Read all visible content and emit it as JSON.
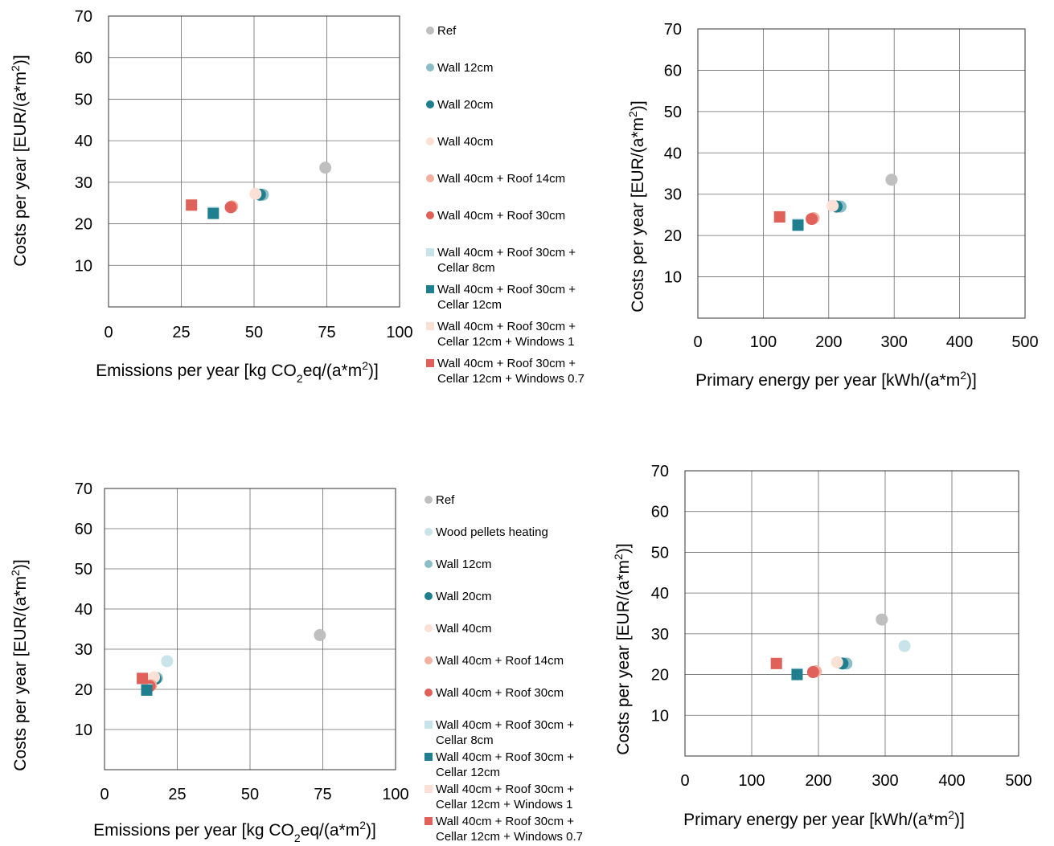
{
  "chart_data": [
    {
      "type": "scatter",
      "xlabel": "Emissions per year [kg CO2eq/(a*m2)]",
      "ylabel": "Costs per year [EUR/(a*m2)]",
      "xlim": [
        0,
        100
      ],
      "ylim": [
        0,
        70
      ],
      "xticks": [
        "0",
        "25",
        "50",
        "75",
        "100"
      ],
      "yticks": [
        "10",
        "20",
        "30",
        "40",
        "50",
        "60",
        "70"
      ],
      "grid": true,
      "legend": "right",
      "series": [
        {
          "name": "Ref",
          "marker": "circle",
          "color": "#bfbfbf",
          "x": [
            74.5
          ],
          "y": [
            33.5
          ]
        },
        {
          "name": "Wall 12cm",
          "marker": "circle",
          "color": "#8cbcc6",
          "x": [
            53
          ],
          "y": [
            27
          ]
        },
        {
          "name": "Wall 20cm",
          "marker": "circle",
          "color": "#1f7f8e",
          "x": [
            52
          ],
          "y": [
            27
          ]
        },
        {
          "name": "Wall 40cm",
          "marker": "circle",
          "color": "#fbe0d6",
          "x": [
            50.5
          ],
          "y": [
            27.2
          ]
        },
        {
          "name": "Wall 40cm + Roof 14cm",
          "marker": "circle",
          "color": "#f2b09e",
          "x": [
            42.5
          ],
          "y": [
            24.2
          ]
        },
        {
          "name": "Wall 40cm + Roof 30cm",
          "marker": "circle",
          "color": "#e0605a",
          "x": [
            42
          ],
          "y": [
            24
          ]
        },
        {
          "name": "Wall 40cm + Roof 30cm + Cellar 8cm",
          "marker": "square",
          "color": "#c9e3ea",
          "x": [
            36
          ],
          "y": [
            22.8
          ]
        },
        {
          "name": "Wall 40cm + Roof 30cm + Cellar 12cm",
          "marker": "square",
          "color": "#1f7f8e",
          "x": [
            36
          ],
          "y": [
            22.5
          ]
        },
        {
          "name": "Wall 40cm + Roof 30cm + Cellar 12cm + Windows 1",
          "marker": "square",
          "color": "#fbe0d6",
          "x": [
            28.5
          ],
          "y": [
            24.6
          ]
        },
        {
          "name": "Wall 40cm + Roof 30cm + Cellar 12cm + Windows 0.7",
          "marker": "square",
          "color": "#e0605a",
          "x": [
            28.5
          ],
          "y": [
            24.5
          ]
        }
      ]
    },
    {
      "type": "scatter",
      "xlabel": "Primary energy per year [kWh/(a*m2)]",
      "ylabel": "Costs per year [EUR/(a*m2)]",
      "xlim": [
        0,
        500
      ],
      "ylim": [
        0,
        70
      ],
      "xticks": [
        "0",
        "100",
        "200",
        "300",
        "400",
        "500"
      ],
      "yticks": [
        "10",
        "20",
        "30",
        "40",
        "50",
        "60",
        "70"
      ],
      "grid": true,
      "series": [
        {
          "name": "Ref",
          "marker": "circle",
          "color": "#bfbfbf",
          "x": [
            296
          ],
          "y": [
            33.5
          ]
        },
        {
          "name": "Wall 12cm",
          "marker": "circle",
          "color": "#8cbcc6",
          "x": [
            218
          ],
          "y": [
            27
          ]
        },
        {
          "name": "Wall 20cm",
          "marker": "circle",
          "color": "#1f7f8e",
          "x": [
            212
          ],
          "y": [
            27
          ]
        },
        {
          "name": "Wall 40cm",
          "marker": "circle",
          "color": "#fbe0d6",
          "x": [
            206
          ],
          "y": [
            27.2
          ]
        },
        {
          "name": "Wall 40cm + Roof 14cm",
          "marker": "circle",
          "color": "#f2b09e",
          "x": [
            177
          ],
          "y": [
            24.2
          ]
        },
        {
          "name": "Wall 40cm + Roof 30cm",
          "marker": "circle",
          "color": "#e0605a",
          "x": [
            174
          ],
          "y": [
            24
          ]
        },
        {
          "name": "Wall 40cm + Roof 30cm + Cellar 8cm",
          "marker": "square",
          "color": "#c9e3ea",
          "x": [
            153
          ],
          "y": [
            22.8
          ]
        },
        {
          "name": "Wall 40cm + Roof 30cm + Cellar 12cm",
          "marker": "square",
          "color": "#1f7f8e",
          "x": [
            153
          ],
          "y": [
            22.5
          ]
        },
        {
          "name": "Wall 40cm + Roof 30cm + Cellar 12cm + Windows 1",
          "marker": "square",
          "color": "#fbe0d6",
          "x": [
            125
          ],
          "y": [
            24.6
          ]
        },
        {
          "name": "Wall 40cm + Roof 30cm + Cellar 12cm + Windows 0.7",
          "marker": "square",
          "color": "#e0605a",
          "x": [
            125
          ],
          "y": [
            24.5
          ]
        }
      ]
    },
    {
      "type": "scatter",
      "xlabel": "Emissions per year [kg CO2eq/(a*m2)]",
      "ylabel": "Costs per year [EUR/(a*m2)]",
      "xlim": [
        0,
        100
      ],
      "ylim": [
        0,
        70
      ],
      "xticks": [
        "0",
        "25",
        "50",
        "75",
        "100"
      ],
      "yticks": [
        "10",
        "20",
        "30",
        "40",
        "50",
        "60",
        "70"
      ],
      "grid": true,
      "legend": "right",
      "series": [
        {
          "name": "Ref",
          "marker": "circle",
          "color": "#bfbfbf",
          "x": [
            74
          ],
          "y": [
            33.5
          ]
        },
        {
          "name": "Wood pellets heating",
          "marker": "circle",
          "color": "#c9e3ea",
          "x": [
            21.5
          ],
          "y": [
            27
          ]
        },
        {
          "name": "Wall 12cm",
          "marker": "circle",
          "color": "#8cbcc6",
          "x": [
            18
          ],
          "y": [
            22.8
          ]
        },
        {
          "name": "Wall 20cm",
          "marker": "circle",
          "color": "#1f7f8e",
          "x": [
            17.5
          ],
          "y": [
            22.6
          ]
        },
        {
          "name": "Wall 40cm",
          "marker": "circle",
          "color": "#fbe0d6",
          "x": [
            17
          ],
          "y": [
            23
          ]
        },
        {
          "name": "Wall 40cm + Roof 14cm",
          "marker": "circle",
          "color": "#f2b09e",
          "x": [
            16
          ],
          "y": [
            21
          ]
        },
        {
          "name": "Wall 40cm + Roof 30cm",
          "marker": "circle",
          "color": "#e0605a",
          "x": [
            15.5
          ],
          "y": [
            20.8
          ]
        },
        {
          "name": "Wall 40cm + Roof 30cm + Cellar 8cm",
          "marker": "square",
          "color": "#c9e3ea",
          "x": [
            14.5
          ],
          "y": [
            20
          ]
        },
        {
          "name": "Wall 40cm + Roof 30cm + Cellar 12cm",
          "marker": "square",
          "color": "#1f7f8e",
          "x": [
            14.5
          ],
          "y": [
            19.8
          ]
        },
        {
          "name": "Wall 40cm + Roof 30cm + Cellar 12cm + Windows 1",
          "marker": "square",
          "color": "#fbe0d6",
          "x": [
            13
          ],
          "y": [
            22.8
          ]
        },
        {
          "name": "Wall 40cm + Roof 30cm + Cellar 12cm + Windows 0.7",
          "marker": "square",
          "color": "#e0605a",
          "x": [
            13
          ],
          "y": [
            22.7
          ]
        }
      ]
    },
    {
      "type": "scatter",
      "xlabel": "Primary energy per year [kWh/(a*m2)]",
      "ylabel": "Costs per year [EUR/(a*m2)]",
      "xlim": [
        0,
        500
      ],
      "ylim": [
        0,
        70
      ],
      "xticks": [
        "0",
        "100",
        "200",
        "300",
        "400",
        "500"
      ],
      "yticks": [
        "10",
        "20",
        "30",
        "40",
        "50",
        "60",
        "70"
      ],
      "grid": true,
      "series": [
        {
          "name": "Ref",
          "marker": "circle",
          "color": "#bfbfbf",
          "x": [
            295
          ],
          "y": [
            33.5
          ]
        },
        {
          "name": "Wood pellets heating",
          "marker": "circle",
          "color": "#c9e3ea",
          "x": [
            329
          ],
          "y": [
            27
          ]
        },
        {
          "name": "Wall 12cm",
          "marker": "circle",
          "color": "#8cbcc6",
          "x": [
            242
          ],
          "y": [
            22.7
          ]
        },
        {
          "name": "Wall 20cm",
          "marker": "circle",
          "color": "#1f7f8e",
          "x": [
            236
          ],
          "y": [
            22.7
          ]
        },
        {
          "name": "Wall 40cm",
          "marker": "circle",
          "color": "#fbe0d6",
          "x": [
            228
          ],
          "y": [
            23
          ]
        },
        {
          "name": "Wall 40cm + Roof 14cm",
          "marker": "circle",
          "color": "#f2b09e",
          "x": [
            196
          ],
          "y": [
            20.8
          ]
        },
        {
          "name": "Wall 40cm + Roof 30cm",
          "marker": "circle",
          "color": "#e0605a",
          "x": [
            192
          ],
          "y": [
            20.6
          ]
        },
        {
          "name": "Wall 40cm + Roof 30cm + Cellar 8cm",
          "marker": "square",
          "color": "#c9e3ea",
          "x": [
            168
          ],
          "y": [
            20.2
          ]
        },
        {
          "name": "Wall 40cm + Roof 30cm + Cellar 12cm",
          "marker": "square",
          "color": "#1f7f8e",
          "x": [
            168
          ],
          "y": [
            20
          ]
        },
        {
          "name": "Wall 40cm + Roof 30cm + Cellar 12cm + Windows 1",
          "marker": "square",
          "color": "#fbe0d6",
          "x": [
            137
          ],
          "y": [
            22.8
          ]
        },
        {
          "name": "Wall 40cm + Roof 30cm + Cellar 12cm + Windows 0.7",
          "marker": "square",
          "color": "#e0605a",
          "x": [
            137
          ],
          "y": [
            22.7
          ]
        }
      ]
    }
  ]
}
